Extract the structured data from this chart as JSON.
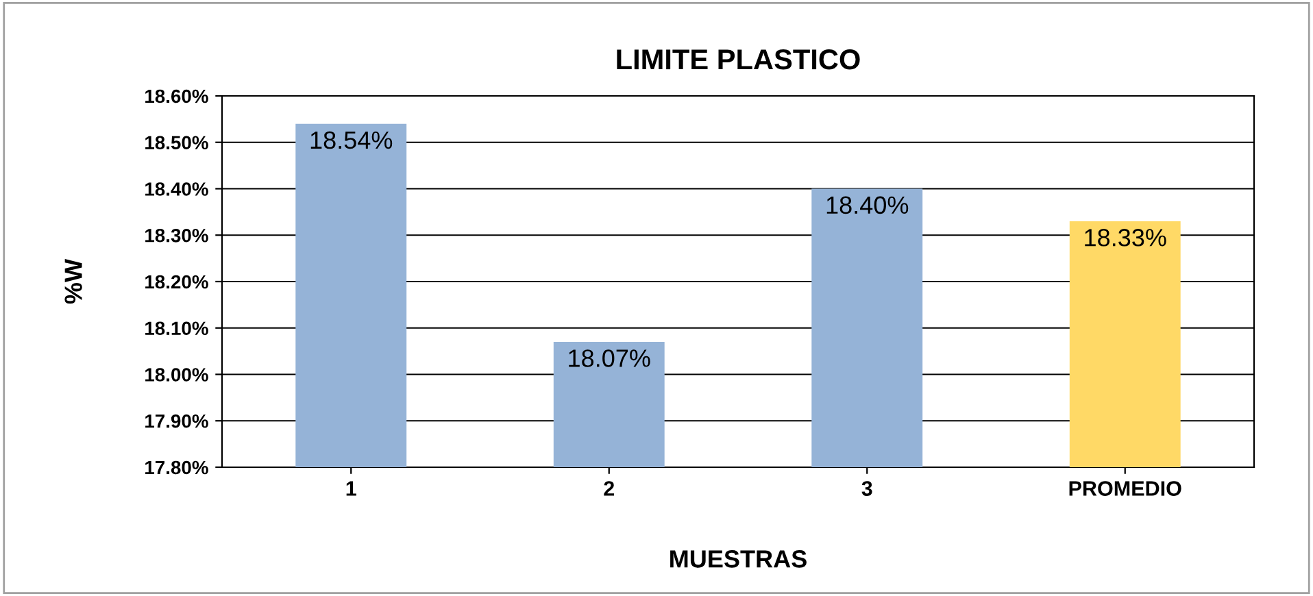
{
  "chart_data": {
    "type": "bar",
    "title": "LIMITE PLASTICO",
    "xlabel": "MUESTRAS",
    "ylabel": "%W",
    "categories": [
      "1",
      "2",
      "3",
      "PROMEDIO"
    ],
    "values": [
      18.54,
      18.07,
      18.4,
      18.33
    ],
    "colors": [
      "#95b3d7",
      "#95b3d7",
      "#95b3d7",
      "#ffd966"
    ],
    "value_labels": [
      "18.54%",
      "18.07%",
      "18.40%",
      "18.33%"
    ],
    "ylim": [
      17.8,
      18.6
    ],
    "yticks": [
      {
        "value": 17.8,
        "label": "17.80%"
      },
      {
        "value": 17.9,
        "label": "17.90%"
      },
      {
        "value": 18.0,
        "label": "18.00%"
      },
      {
        "value": 18.1,
        "label": "18.10%"
      },
      {
        "value": 18.2,
        "label": "18.20%"
      },
      {
        "value": 18.3,
        "label": "18.30%"
      },
      {
        "value": 18.4,
        "label": "18.40%"
      },
      {
        "value": 18.5,
        "label": "18.50%"
      },
      {
        "value": 18.6,
        "label": "18.60%"
      }
    ],
    "grid": "y",
    "legend": false
  }
}
